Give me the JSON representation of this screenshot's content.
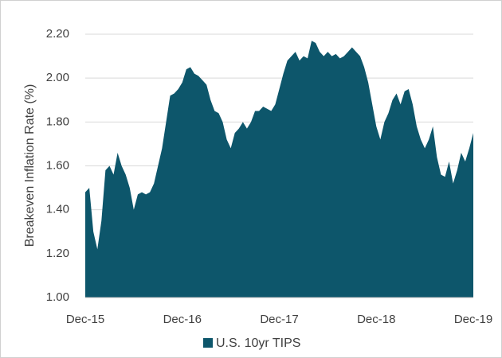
{
  "chart_data": {
    "type": "area",
    "y_label": "Breakeven Inflation Rate (%)",
    "categories": [
      "Dec-15",
      null,
      null,
      null,
      null,
      null,
      null,
      null,
      null,
      null,
      null,
      null,
      null,
      null,
      null,
      null,
      null,
      null,
      null,
      null,
      null,
      null,
      null,
      null,
      "Dec-16",
      null,
      null,
      null,
      null,
      null,
      null,
      null,
      null,
      null,
      null,
      null,
      null,
      null,
      null,
      null,
      null,
      null,
      null,
      null,
      null,
      null,
      null,
      null,
      "Dec-17",
      null,
      null,
      null,
      null,
      null,
      null,
      null,
      null,
      null,
      null,
      null,
      null,
      null,
      null,
      null,
      null,
      null,
      null,
      null,
      null,
      null,
      null,
      null,
      "Dec-18",
      null,
      null,
      null,
      null,
      null,
      null,
      null,
      null,
      null,
      null,
      null,
      null,
      null,
      null,
      null,
      null,
      null,
      null,
      null,
      null,
      null,
      null,
      null,
      "Dec-19"
    ],
    "series": [
      {
        "name": "U.S. 10yr TIPS",
        "color": "#0d566b",
        "values": [
          1.48,
          1.5,
          1.3,
          1.22,
          1.35,
          1.58,
          1.6,
          1.56,
          1.66,
          1.6,
          1.56,
          1.5,
          1.4,
          1.47,
          1.48,
          1.47,
          1.48,
          1.52,
          1.6,
          1.68,
          1.8,
          1.92,
          1.93,
          1.95,
          1.98,
          2.04,
          2.05,
          2.02,
          2.01,
          1.99,
          1.97,
          1.9,
          1.85,
          1.84,
          1.8,
          1.72,
          1.68,
          1.75,
          1.77,
          1.8,
          1.77,
          1.8,
          1.85,
          1.85,
          1.87,
          1.86,
          1.85,
          1.88,
          1.95,
          2.02,
          2.08,
          2.1,
          2.12,
          2.08,
          2.1,
          2.09,
          2.17,
          2.16,
          2.12,
          2.1,
          2.12,
          2.1,
          2.11,
          2.09,
          2.1,
          2.12,
          2.14,
          2.12,
          2.1,
          2.05,
          1.98,
          1.88,
          1.78,
          1.72,
          1.8,
          1.84,
          1.9,
          1.93,
          1.88,
          1.94,
          1.95,
          1.88,
          1.78,
          1.72,
          1.68,
          1.72,
          1.78,
          1.64,
          1.56,
          1.55,
          1.62,
          1.52,
          1.58,
          1.66,
          1.62,
          1.68,
          1.75
        ]
      }
    ],
    "ylim": [
      1.0,
      2.2
    ],
    "yticks": [
      {
        "value": 1.0,
        "label": "1.00"
      },
      {
        "value": 1.2,
        "label": "1.20"
      },
      {
        "value": 1.4,
        "label": "1.40"
      },
      {
        "value": 1.6,
        "label": "1.60"
      },
      {
        "value": 1.8,
        "label": "1.80"
      },
      {
        "value": 2.0,
        "label": "2.00"
      },
      {
        "value": 2.2,
        "label": "2.20"
      }
    ],
    "grid": true,
    "legend": "bottom"
  }
}
